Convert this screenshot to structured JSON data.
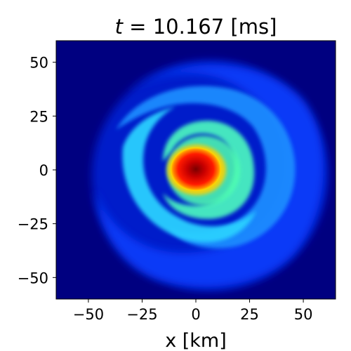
{
  "chart_data": {
    "type": "heatmap",
    "title_prefix": "t",
    "title_rest": " = 10.167 [ms]",
    "xlabel": "x [km]",
    "ylabel": "",
    "xlim": [
      -65,
      65
    ],
    "ylim": [
      -60,
      60
    ],
    "x_ticks": [
      -50,
      -25,
      0,
      25,
      50
    ],
    "y_ticks": [
      50,
      25,
      0,
      -25,
      -50
    ],
    "x_tick_labels": [
      "−50",
      "−25",
      "0",
      "25",
      "50"
    ],
    "y_tick_labels": [
      "50",
      "25",
      "0",
      "−25",
      "−50"
    ],
    "grid": false,
    "colorbar": false,
    "colormap": "jet",
    "background_color": "#000080",
    "field": {
      "description_free": true,
      "center": [
        0,
        0
      ],
      "disk_outer_radius_km": 60,
      "spiral_arms": 2,
      "rotation": "counter-clockwise outward",
      "core_radius_km": 11,
      "core_peak_value": 1.0,
      "inner_ring_radius_km": 22,
      "inner_ring_value": 0.45,
      "outer_disk_value": 0.28
    }
  }
}
